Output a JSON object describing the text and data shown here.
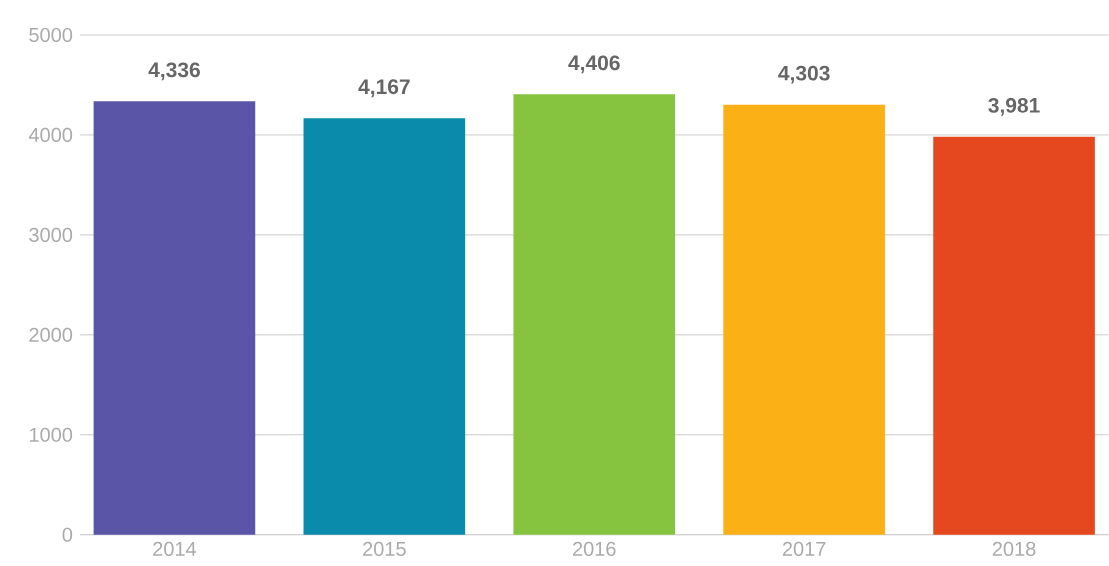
{
  "chart_data": {
    "type": "bar",
    "categories": [
      "2014",
      "2015",
      "2016",
      "2017",
      "2018"
    ],
    "values": [
      4336,
      4167,
      4406,
      4303,
      3981
    ],
    "value_labels": [
      "4,336",
      "4,167",
      "4,406",
      "4,303",
      "3,981"
    ],
    "colors": [
      "#5b55a8",
      "#0a8bab",
      "#86c440",
      "#fbb016",
      "#e5481f"
    ],
    "ylim": [
      0,
      5000
    ],
    "yticks": [
      0,
      1000,
      2000,
      3000,
      4000,
      5000
    ],
    "grid": "y"
  }
}
